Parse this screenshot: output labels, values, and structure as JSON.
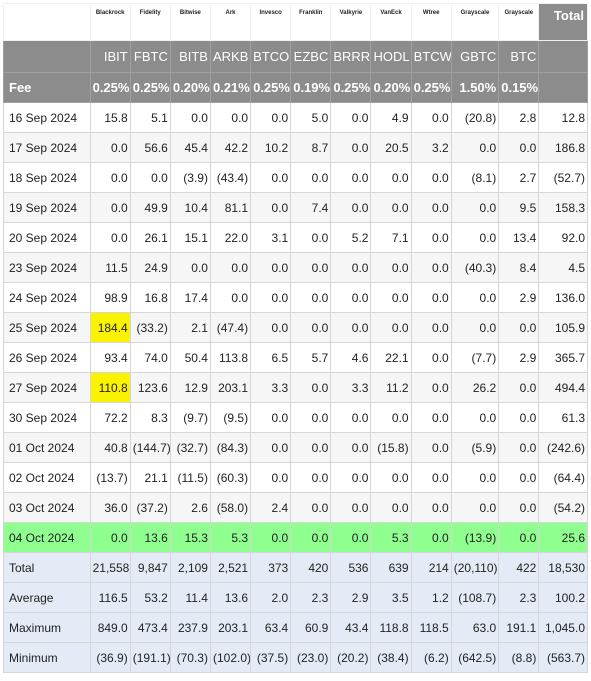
{
  "table": {
    "total_header": "Total",
    "issuers": [
      "Blackrock",
      "Fidelity",
      "Bitwise",
      "Ark",
      "Invesco",
      "Franklin",
      "Valkyrie",
      "VanEck",
      "Wtree",
      "Grayscale",
      "Grayscale"
    ],
    "tickers": [
      "IBIT",
      "FBTC",
      "BITB",
      "ARKB",
      "BTCO",
      "EZBC",
      "BRRR",
      "HODL",
      "BTCW",
      "GBTC",
      "BTC"
    ],
    "fee_label": "Fee",
    "fees": [
      "0.25%",
      "0.25%",
      "0.20%",
      "0.21%",
      "0.25%",
      "0.19%",
      "0.25%",
      "0.20%",
      "0.25%",
      "1.50%",
      "0.15%"
    ],
    "rows": [
      {
        "date": "16 Sep 2024",
        "values": [
          "15.8",
          "5.1",
          "0.0",
          "0.0",
          "0.0",
          "5.0",
          "0.0",
          "4.9",
          "0.0",
          "(20.8)",
          "2.8"
        ],
        "total": "12.8"
      },
      {
        "date": "17 Sep 2024",
        "values": [
          "0.0",
          "56.6",
          "45.4",
          "42.2",
          "10.2",
          "8.7",
          "0.0",
          "20.5",
          "3.2",
          "0.0",
          "0.0"
        ],
        "total": "186.8"
      },
      {
        "date": "18 Sep 2024",
        "values": [
          "0.0",
          "0.0",
          "(3.9)",
          "(43.4)",
          "0.0",
          "0.0",
          "0.0",
          "0.0",
          "0.0",
          "(8.1)",
          "2.7"
        ],
        "total": "(52.7)"
      },
      {
        "date": "19 Sep 2024",
        "values": [
          "0.0",
          "49.9",
          "10.4",
          "81.1",
          "0.0",
          "7.4",
          "0.0",
          "0.0",
          "0.0",
          "0.0",
          "9.5"
        ],
        "total": "158.3"
      },
      {
        "date": "20 Sep 2024",
        "values": [
          "0.0",
          "26.1",
          "15.1",
          "22.0",
          "3.1",
          "0.0",
          "5.2",
          "7.1",
          "0.0",
          "0.0",
          "13.4"
        ],
        "total": "92.0"
      },
      {
        "date": "23 Sep 2024",
        "values": [
          "11.5",
          "24.9",
          "0.0",
          "0.0",
          "0.0",
          "0.0",
          "0.0",
          "0.0",
          "0.0",
          "(40.3)",
          "8.4"
        ],
        "total": "4.5"
      },
      {
        "date": "24 Sep 2024",
        "values": [
          "98.9",
          "16.8",
          "17.4",
          "0.0",
          "0.0",
          "0.0",
          "0.0",
          "0.0",
          "0.0",
          "0.0",
          "2.9"
        ],
        "total": "136.0"
      },
      {
        "date": "25 Sep 2024",
        "values": [
          "184.4",
          "(33.2)",
          "2.1",
          "(47.4)",
          "0.0",
          "0.0",
          "0.0",
          "0.0",
          "0.0",
          "0.0",
          "0.0"
        ],
        "total": "105.9",
        "highlight": [
          0
        ]
      },
      {
        "date": "26 Sep 2024",
        "values": [
          "93.4",
          "74.0",
          "50.4",
          "113.8",
          "6.5",
          "5.7",
          "4.6",
          "22.1",
          "0.0",
          "(7.7)",
          "2.9"
        ],
        "total": "365.7"
      },
      {
        "date": "27 Sep 2024",
        "values": [
          "110.8",
          "123.6",
          "12.9",
          "203.1",
          "3.3",
          "0.0",
          "3.3",
          "11.2",
          "0.0",
          "26.2",
          "0.0"
        ],
        "total": "494.4",
        "highlight": [
          0
        ]
      },
      {
        "date": "30 Sep 2024",
        "values": [
          "72.2",
          "8.3",
          "(9.7)",
          "(9.5)",
          "0.0",
          "0.0",
          "0.0",
          "0.0",
          "0.0",
          "0.0",
          "0.0"
        ],
        "total": "61.3"
      },
      {
        "date": "01 Oct 2024",
        "values": [
          "40.8",
          "(144.7)",
          "(32.7)",
          "(84.3)",
          "0.0",
          "0.0",
          "0.0",
          "(15.8)",
          "0.0",
          "(5.9)",
          "0.0"
        ],
        "total": "(242.6)"
      },
      {
        "date": "02 Oct 2024",
        "values": [
          "(13.7)",
          "21.1",
          "(11.5)",
          "(60.3)",
          "0.0",
          "0.0",
          "0.0",
          "0.0",
          "0.0",
          "0.0",
          "0.0"
        ],
        "total": "(64.4)"
      },
      {
        "date": "03 Oct 2024",
        "values": [
          "36.0",
          "(37.2)",
          "2.6",
          "(58.0)",
          "2.4",
          "0.0",
          "0.0",
          "0.0",
          "0.0",
          "0.0",
          "0.0"
        ],
        "total": "(54.2)"
      },
      {
        "date": "04 Oct 2024",
        "values": [
          "0.0",
          "13.6",
          "15.3",
          "5.3",
          "0.0",
          "0.0",
          "0.0",
          "5.3",
          "0.0",
          "(13.9)",
          "0.0"
        ],
        "total": "25.6",
        "row_highlight": true
      }
    ],
    "stats": [
      {
        "label": "Total",
        "values": [
          "21,558",
          "9,847",
          "2,109",
          "2,521",
          "373",
          "420",
          "536",
          "639",
          "214",
          "(20,110)",
          "422"
        ],
        "total": "18,530"
      },
      {
        "label": "Average",
        "values": [
          "116.5",
          "53.2",
          "11.4",
          "13.6",
          "2.0",
          "2.3",
          "2.9",
          "3.5",
          "1.2",
          "(108.7)",
          "2.3"
        ],
        "total": "100.2"
      },
      {
        "label": "Maximum",
        "values": [
          "849.0",
          "473.4",
          "237.9",
          "203.1",
          "63.4",
          "60.9",
          "43.4",
          "118.8",
          "118.5",
          "63.0",
          "191.1"
        ],
        "total": "1,045.0"
      },
      {
        "label": "Minimum",
        "values": [
          "(36.9)",
          "(191.1)",
          "(70.3)",
          "(102.0)",
          "(37.5)",
          "(23.0)",
          "(20.2)",
          "(38.4)",
          "(6.2)",
          "(642.5)",
          "(8.8)"
        ],
        "total": "(563.7)"
      }
    ],
    "colors": {
      "header_bg": "#8c8c8c",
      "negative": "#e0262b",
      "highlight_yellow": "#f9f200",
      "highlight_green": "#8fff8f",
      "stats_bg": "#e4ebf7"
    }
  }
}
